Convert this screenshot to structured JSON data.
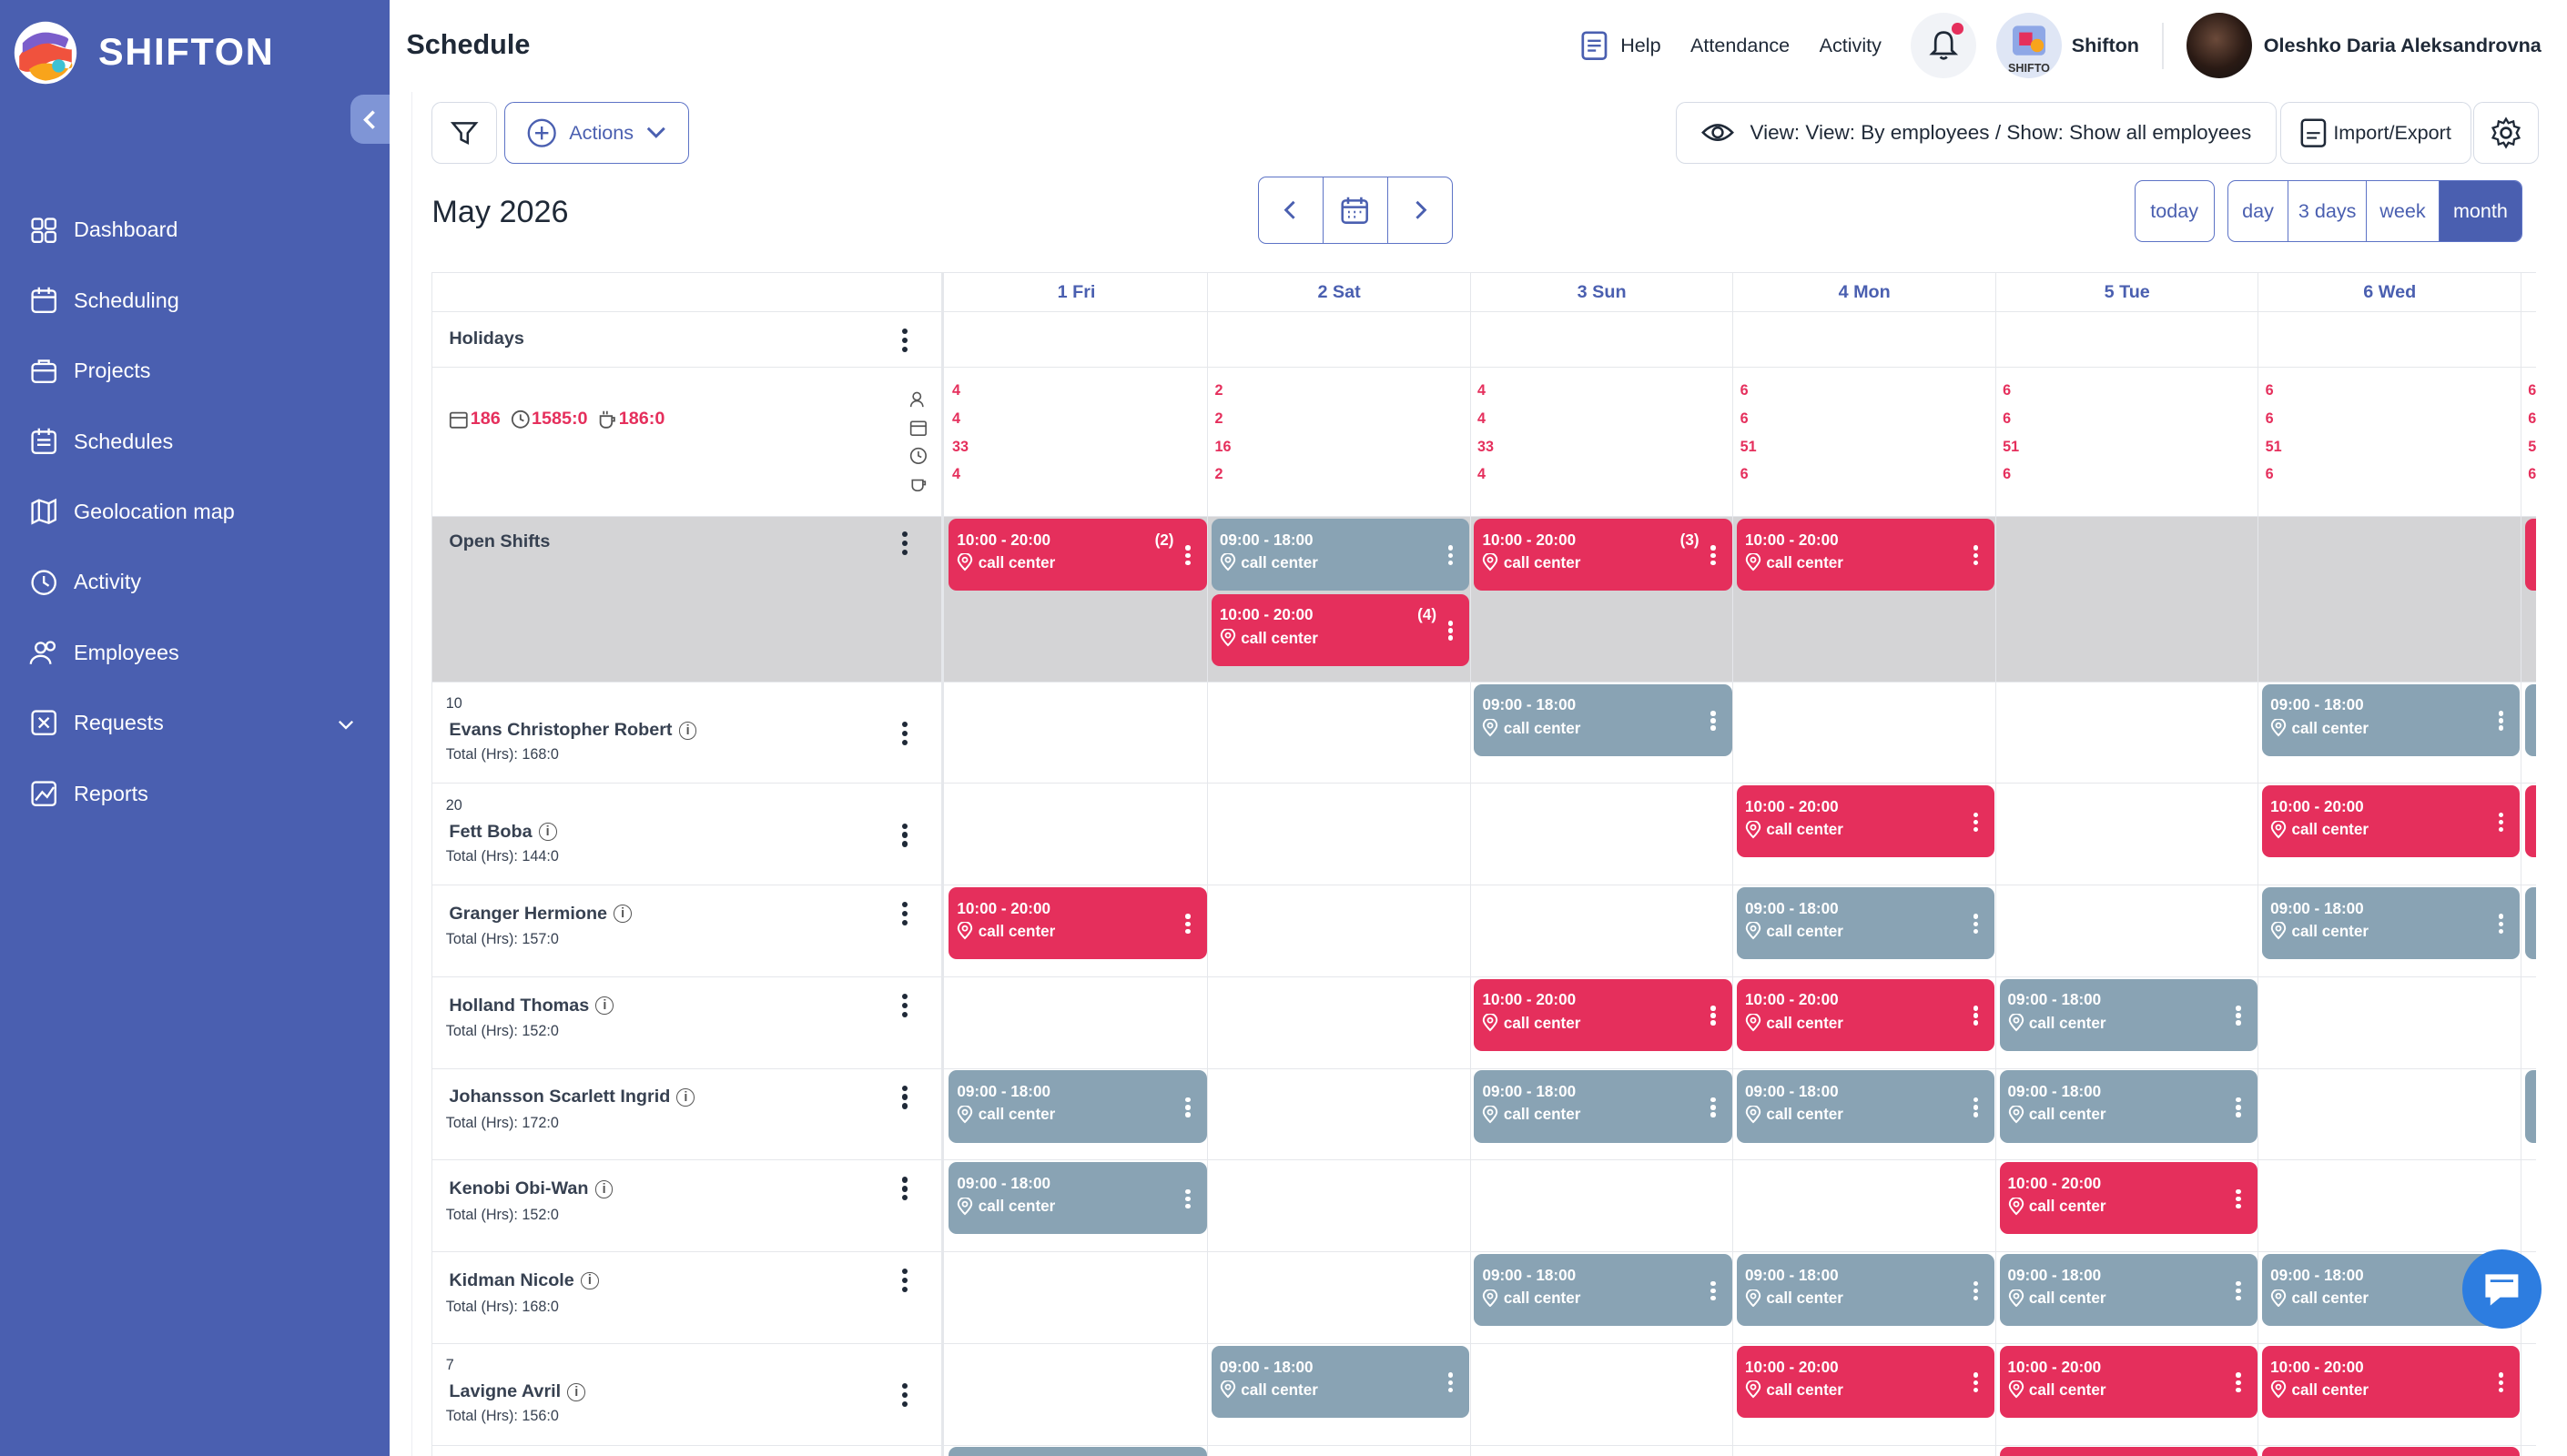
{
  "app": {
    "brand": "SHIFTON",
    "page_title": "Schedule"
  },
  "sidebar": {
    "items": [
      {
        "label": "Dashboard",
        "icon": "dashboard-icon"
      },
      {
        "label": "Scheduling",
        "icon": "calendar-icon"
      },
      {
        "label": "Projects",
        "icon": "briefcase-icon"
      },
      {
        "label": "Schedules",
        "icon": "schedule-list-icon"
      },
      {
        "label": "Geolocation map",
        "icon": "map-icon"
      },
      {
        "label": "Activity",
        "icon": "clock-icon"
      },
      {
        "label": "Employees",
        "icon": "users-icon"
      },
      {
        "label": "Requests",
        "icon": "request-icon"
      },
      {
        "label": "Reports",
        "icon": "chart-icon"
      }
    ]
  },
  "topbar": {
    "help": "Help",
    "attendance": "Attendance",
    "activity": "Activity",
    "company": "Shifton",
    "company_logo_text": "SHIFTO",
    "user": "Oleshko Daria Aleksandrovna"
  },
  "toolbar": {
    "actions": "Actions",
    "view": "View: View: By employees / Show: Show all employees",
    "import_export": "Import/Export"
  },
  "calendar": {
    "month_title": "May 2026",
    "today": "today",
    "views": [
      {
        "label": "day",
        "active": false
      },
      {
        "label": "3 days",
        "active": false
      },
      {
        "label": "week",
        "active": false
      },
      {
        "label": "month",
        "active": true
      }
    ],
    "days": [
      "1 Fri",
      "2 Sat",
      "3 Sun",
      "4 Mon",
      "5 Tue",
      "6 Wed"
    ],
    "holidays_label": "Holidays",
    "summary": {
      "days": "186",
      "hours": "1585:0",
      "breaks": "186:0"
    },
    "day_stats": [
      [
        "4",
        "4",
        "33",
        "4"
      ],
      [
        "2",
        "2",
        "16",
        "2"
      ],
      [
        "4",
        "4",
        "33",
        "4"
      ],
      [
        "6",
        "6",
        "51",
        "6"
      ],
      [
        "6",
        "6",
        "51",
        "6"
      ],
      [
        "6",
        "6",
        "51",
        "6"
      ],
      [
        "6",
        "6",
        "5",
        "6"
      ]
    ],
    "open_shifts_label": "Open Shifts",
    "total_prefix": "Total (Hrs): "
  },
  "open_shifts": [
    {
      "col": 0,
      "slot": 0,
      "time": "10:00 - 20:00",
      "loc": "call center",
      "color": "red",
      "count": "(2)"
    },
    {
      "col": 1,
      "slot": 0,
      "time": "09:00 - 18:00",
      "loc": "call center",
      "color": "gray",
      "count": ""
    },
    {
      "col": 1,
      "slot": 1,
      "time": "10:00 - 20:00",
      "loc": "call center",
      "color": "red",
      "count": "(4)"
    },
    {
      "col": 2,
      "slot": 0,
      "time": "10:00 - 20:00",
      "loc": "call center",
      "color": "red",
      "count": "(3)"
    },
    {
      "col": 3,
      "slot": 0,
      "time": "10:00 - 20:00",
      "loc": "call center",
      "color": "red",
      "count": ""
    },
    {
      "col": 6,
      "slot": 0,
      "time": "",
      "loc": "",
      "color": "red",
      "count": ""
    }
  ],
  "employees": [
    {
      "num": "10",
      "name": "Evans Christopher Robert",
      "total": "168:0",
      "shifts": [
        {
          "col": 2,
          "time": "09:00 - 18:00",
          "loc": "call center",
          "color": "gray"
        },
        {
          "col": 5,
          "time": "09:00 - 18:00",
          "loc": "call center",
          "color": "gray"
        },
        {
          "col": 6,
          "time": "",
          "loc": "",
          "color": "gray"
        }
      ]
    },
    {
      "num": "20",
      "name": "Fett Boba",
      "total": "144:0",
      "shifts": [
        {
          "col": 3,
          "time": "10:00 - 20:00",
          "loc": "call center",
          "color": "red"
        },
        {
          "col": 5,
          "time": "10:00 - 20:00",
          "loc": "call center",
          "color": "red"
        },
        {
          "col": 6,
          "time": "",
          "loc": "",
          "color": "red"
        }
      ]
    },
    {
      "num": "",
      "name": "Granger Hermione",
      "total": "157:0",
      "shifts": [
        {
          "col": 0,
          "time": "10:00 - 20:00",
          "loc": "call center",
          "color": "red"
        },
        {
          "col": 3,
          "time": "09:00 - 18:00",
          "loc": "call center",
          "color": "gray"
        },
        {
          "col": 5,
          "time": "09:00 - 18:00",
          "loc": "call center",
          "color": "gray"
        },
        {
          "col": 6,
          "time": "",
          "loc": "",
          "color": "gray"
        }
      ]
    },
    {
      "num": "",
      "name": "Holland Thomas",
      "total": "152:0",
      "shifts": [
        {
          "col": 2,
          "time": "10:00 - 20:00",
          "loc": "call center",
          "color": "red"
        },
        {
          "col": 3,
          "time": "10:00 - 20:00",
          "loc": "call center",
          "color": "red"
        },
        {
          "col": 4,
          "time": "09:00 - 18:00",
          "loc": "call center",
          "color": "gray"
        }
      ]
    },
    {
      "num": "",
      "name": "Johansson Scarlett Ingrid",
      "total": "172:0",
      "shifts": [
        {
          "col": 0,
          "time": "09:00 - 18:00",
          "loc": "call center",
          "color": "gray"
        },
        {
          "col": 2,
          "time": "09:00 - 18:00",
          "loc": "call center",
          "color": "gray"
        },
        {
          "col": 3,
          "time": "09:00 - 18:00",
          "loc": "call center",
          "color": "gray"
        },
        {
          "col": 4,
          "time": "09:00 - 18:00",
          "loc": "call center",
          "color": "gray"
        },
        {
          "col": 6,
          "time": "",
          "loc": "",
          "color": "gray"
        }
      ]
    },
    {
      "num": "",
      "name": "Kenobi Obi-Wan",
      "total": "152:0",
      "shifts": [
        {
          "col": 0,
          "time": "09:00 - 18:00",
          "loc": "call center",
          "color": "gray"
        },
        {
          "col": 4,
          "time": "10:00 - 20:00",
          "loc": "call center",
          "color": "red"
        }
      ]
    },
    {
      "num": "",
      "name": "Kidman Nicole",
      "total": "168:0",
      "shifts": [
        {
          "col": 2,
          "time": "09:00 - 18:00",
          "loc": "call center",
          "color": "gray"
        },
        {
          "col": 3,
          "time": "09:00 - 18:00",
          "loc": "call center",
          "color": "gray"
        },
        {
          "col": 4,
          "time": "09:00 - 18:00",
          "loc": "call center",
          "color": "gray"
        },
        {
          "col": 5,
          "time": "09:00 - 18:00",
          "loc": "call center",
          "color": "gray"
        }
      ]
    },
    {
      "num": "7",
      "name": "Lavigne Avril",
      "total": "156:0",
      "shifts": [
        {
          "col": 1,
          "time": "09:00 - 18:00",
          "loc": "call center",
          "color": "gray"
        },
        {
          "col": 3,
          "time": "10:00 - 20:00",
          "loc": "call center",
          "color": "red"
        },
        {
          "col": 4,
          "time": "10:00 - 20:00",
          "loc": "call center",
          "color": "red"
        },
        {
          "col": 5,
          "time": "10:00 - 20:00",
          "loc": "call center",
          "color": "red"
        }
      ]
    },
    {
      "num": "",
      "name": "",
      "total": "",
      "shifts": [
        {
          "col": 0,
          "time": "",
          "loc": "",
          "color": "gray"
        },
        {
          "col": 4,
          "time": "",
          "loc": "",
          "color": "red"
        },
        {
          "col": 5,
          "time": "",
          "loc": "",
          "color": "red"
        }
      ]
    }
  ],
  "colors": {
    "sidebar": "#4a5fb0",
    "accent": "#5d73c6",
    "shift_red": "#e52f5c",
    "shift_gray": "#89a3b4",
    "open_bg": "#d4d4d6"
  }
}
